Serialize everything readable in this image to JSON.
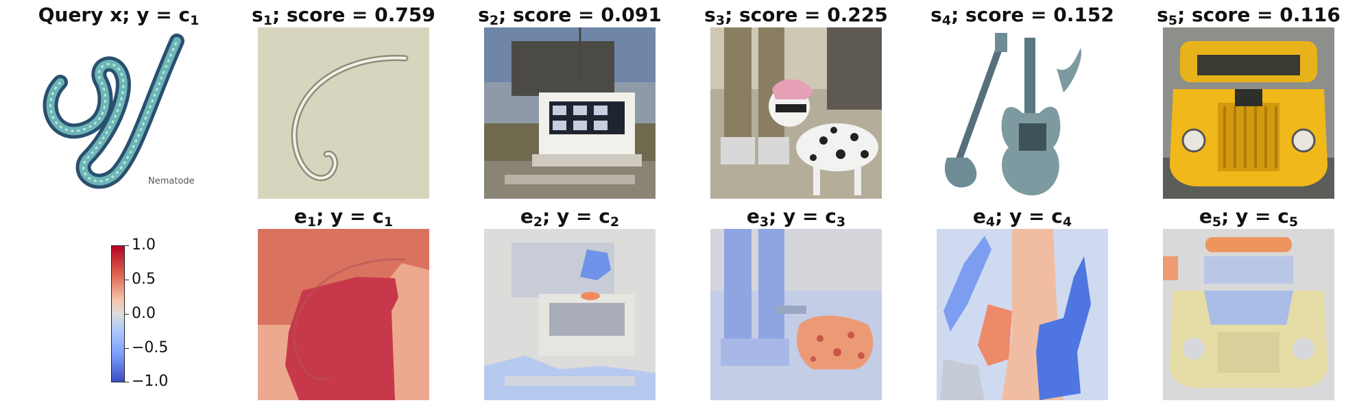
{
  "top_row": [
    {
      "id": "query",
      "title_main": "Query x; y = c",
      "title_sub": "1",
      "title_suffix": "",
      "image": "nematode-illustration",
      "image_caption": "Nematode"
    },
    {
      "id": "s1",
      "title_main": "s",
      "title_sub": "1",
      "title_suffix": "; score = 0.759",
      "image": "nematode-micrograph"
    },
    {
      "id": "s2",
      "title_main": "s",
      "title_sub": "2",
      "title_suffix": "; score = 0.091",
      "image": "scoreboard"
    },
    {
      "id": "s3",
      "title_main": "s",
      "title_sub": "3",
      "title_suffix": "; score = 0.225",
      "image": "dalmatian-dog"
    },
    {
      "id": "s4",
      "title_main": "s",
      "title_sub": "4",
      "title_suffix": "; score = 0.152",
      "image": "electric-guitars"
    },
    {
      "id": "s5",
      "title_main": "s",
      "title_sub": "5",
      "title_suffix": "; score = 0.116",
      "image": "yellow-truck"
    }
  ],
  "bottom_row": [
    {
      "id": "e1",
      "title_main": "e",
      "title_sub": "1",
      "title_mid": "; y = c",
      "title_sub2": "1",
      "image": "explanation-map-1"
    },
    {
      "id": "e2",
      "title_main": "e",
      "title_sub": "2",
      "title_mid": "; y = c",
      "title_sub2": "2",
      "image": "explanation-map-2"
    },
    {
      "id": "e3",
      "title_main": "e",
      "title_sub": "3",
      "title_mid": "; y = c",
      "title_sub2": "3",
      "image": "explanation-map-3"
    },
    {
      "id": "e4",
      "title_main": "e",
      "title_sub": "4",
      "title_mid": "; y = c",
      "title_sub2": "4",
      "image": "explanation-map-4"
    },
    {
      "id": "e5",
      "title_main": "e",
      "title_sub": "5",
      "title_mid": "; y = c",
      "title_sub2": "5",
      "image": "explanation-map-5"
    }
  ],
  "colorbar": {
    "colormap": "coolwarm",
    "min": -1.0,
    "max": 1.0,
    "ticks": [
      "1.0",
      "0.5",
      "0.0",
      "−0.5",
      "−1.0"
    ],
    "colors": {
      "high": "#b40426",
      "mid": "#dddcdc",
      "low": "#3b4cc0"
    }
  }
}
